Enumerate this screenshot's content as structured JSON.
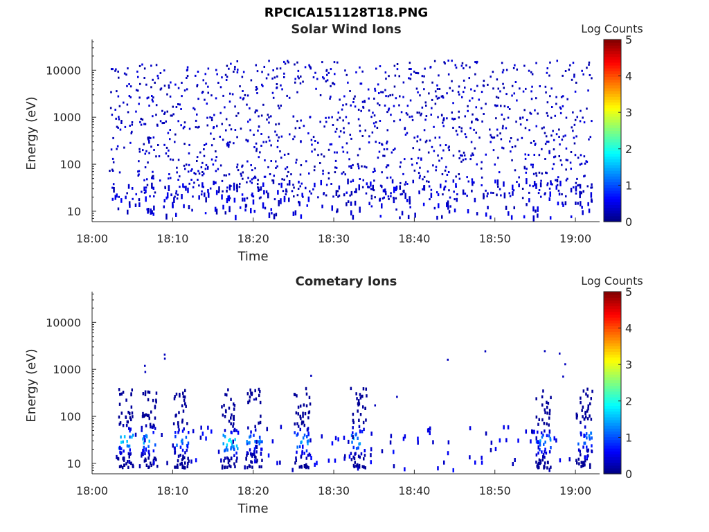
{
  "figure": {
    "title": "RPCICA151128T18.PNG"
  },
  "chart_data": [
    {
      "type": "heatmap",
      "title": "Solar Wind Ions",
      "xlabel": "Time",
      "ylabel": "Energy (eV)",
      "x_ticks": [
        "18:00",
        "18:10",
        "18:20",
        "18:30",
        "18:40",
        "18:50",
        "19:00"
      ],
      "xlim": [
        "18:00",
        "19:03"
      ],
      "data_time_range": [
        "18:02",
        "19:02"
      ],
      "y_scale": "log",
      "y_ticks": [
        10,
        100,
        1000,
        10000
      ],
      "ylim": [
        6,
        45000
      ],
      "colorbar": {
        "label": "Log Counts",
        "ticks": [
          0,
          1,
          2,
          3,
          4,
          5
        ],
        "range": [
          0,
          5
        ],
        "colormap": "jet"
      },
      "description_level": "mostly log counts 0.1-0.5 (dark blue) scattered across 10 eV - 20 keV; denser dark-blue clusters near 20-40 eV",
      "hot_spots": []
    },
    {
      "type": "heatmap",
      "title": "Cometary Ions",
      "xlabel": "Time",
      "ylabel": "Energy (eV)",
      "x_ticks": [
        "18:00",
        "18:10",
        "18:20",
        "18:30",
        "18:40",
        "18:50",
        "19:00"
      ],
      "xlim": [
        "18:00",
        "19:03"
      ],
      "data_time_range": [
        "18:02",
        "19:02"
      ],
      "y_scale": "log",
      "y_ticks": [
        10,
        100,
        1000,
        10000
      ],
      "ylim": [
        6,
        45000
      ],
      "colorbar": {
        "label": "Log Counts",
        "ticks": [
          0,
          1,
          2,
          3,
          4,
          5
        ],
        "range": [
          0,
          5
        ],
        "colormap": "jet"
      },
      "description_level": "bursts of counts between ~8 and 400 eV, peaks up to log counts ~2 near 25-40 eV",
      "hot_spots": [
        {
          "time": "18:04",
          "energy_eV": 30,
          "log_counts": 1.9
        },
        {
          "time": "18:07",
          "energy_eV": 30,
          "log_counts": 1.7
        },
        {
          "time": "18:11",
          "energy_eV": 30,
          "log_counts": 1.5
        },
        {
          "time": "18:17",
          "energy_eV": 28,
          "log_counts": 2.0
        },
        {
          "time": "18:20",
          "energy_eV": 30,
          "log_counts": 1.4
        },
        {
          "time": "18:26",
          "energy_eV": 28,
          "log_counts": 1.8
        },
        {
          "time": "18:33",
          "energy_eV": 30,
          "log_counts": 1.7
        },
        {
          "time": "18:56",
          "energy_eV": 28,
          "log_counts": 1.5
        },
        {
          "time": "19:01",
          "energy_eV": 35,
          "log_counts": 1.6
        }
      ]
    }
  ]
}
